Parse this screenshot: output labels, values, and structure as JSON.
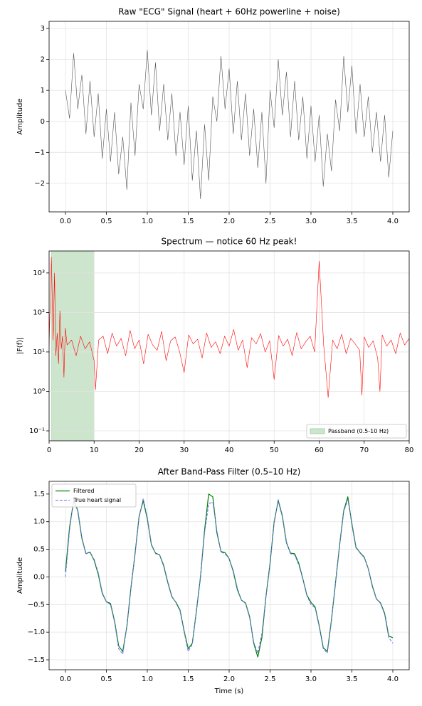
{
  "chart_data": [
    {
      "type": "line",
      "title": "Raw \"ECG\" Signal (heart + 60Hz powerline + noise)",
      "ylabel": "Amplitude",
      "xlim": [
        -0.2,
        4.2
      ],
      "ylim": [
        -2.92,
        3.23
      ],
      "grid": true,
      "xticks": [
        {
          "value": 0,
          "label": "0.0"
        },
        0.5,
        {
          "value": 1,
          "label": "1.0"
        },
        1.5,
        {
          "value": 2,
          "label": "2.0"
        },
        2.5,
        {
          "value": 3,
          "label": "3.0"
        },
        3.5,
        {
          "value": 4,
          "label": "4.0"
        }
      ],
      "yticks": [
        {
          "value": -2,
          "label": "−2"
        },
        {
          "value": -1,
          "label": "−1"
        },
        0,
        1,
        2,
        3
      ],
      "x": [
        0,
        0.05,
        0.1,
        0.15,
        0.2,
        0.25,
        0.3,
        0.35,
        0.4,
        0.45,
        0.5,
        0.55,
        0.6,
        0.65,
        0.7,
        0.75,
        0.8,
        0.85,
        0.9,
        0.95,
        1,
        1.05,
        1.1,
        1.15,
        1.2,
        1.25,
        1.3,
        1.35,
        1.4,
        1.45,
        1.5,
        1.55,
        1.6,
        1.65,
        1.7,
        1.75,
        1.8,
        1.85,
        1.9,
        1.95,
        2,
        2.05,
        2.1,
        2.15,
        2.2,
        2.25,
        2.3,
        2.35,
        2.4,
        2.45,
        2.5,
        2.55,
        2.6,
        2.65,
        2.7,
        2.75,
        2.8,
        2.85,
        2.9,
        2.95,
        3,
        3.05,
        3.1,
        3.15,
        3.2,
        3.25,
        3.3,
        3.35,
        3.4,
        3.45,
        3.5,
        3.55,
        3.6,
        3.65,
        3.7,
        3.75,
        3.8,
        3.85,
        3.9,
        3.95,
        4
      ],
      "series": [
        {
          "color": "#555555",
          "width": 0.6,
          "values": [
            1.0,
            0.1,
            2.2,
            0.4,
            1.5,
            -0.4,
            1.3,
            -0.5,
            0.9,
            -1.2,
            0.4,
            -1.3,
            0.3,
            -1.7,
            -0.5,
            -2.2,
            0.6,
            -1.1,
            1.2,
            0.4,
            2.3,
            0.2,
            1.9,
            -0.3,
            1.2,
            -0.6,
            0.9,
            -1.1,
            0.3,
            -1.4,
            0.5,
            -1.9,
            -0.3,
            -2.5,
            -0.1,
            -1.9,
            0.8,
            0.0,
            2.1,
            0.4,
            1.7,
            -0.4,
            1.3,
            -0.6,
            0.9,
            -1.1,
            0.4,
            -1.5,
            0.3,
            -2.0,
            1.0,
            -0.2,
            2.0,
            0.2,
            1.6,
            -0.5,
            1.3,
            -0.6,
            0.8,
            -1.2,
            0.5,
            -1.3,
            0.2,
            -2.1,
            -0.4,
            -1.6,
            0.7,
            -0.3,
            2.1,
            0.3,
            1.8,
            -0.4,
            1.2,
            -0.5,
            0.8,
            -1.0,
            0.3,
            -1.3,
            0.2,
            -1.8,
            -0.3
          ]
        }
      ]
    },
    {
      "type": "line",
      "title": "Spectrum — notice 60 Hz peak!",
      "ylabel": "|F(f)|",
      "log_y": true,
      "xlim": [
        0,
        80
      ],
      "ylim": [
        0.056,
        3600
      ],
      "grid": true,
      "legend": "lower right",
      "xticks": [
        0,
        10,
        20,
        30,
        40,
        50,
        60,
        70,
        80
      ],
      "yticks": [
        {
          "value": 0.1,
          "label": "10⁻¹"
        },
        {
          "value": 1,
          "label": "10⁰"
        },
        {
          "value": 10,
          "label": "10¹"
        },
        {
          "value": 100,
          "label": "10²"
        },
        {
          "value": 1000,
          "label": "10³"
        }
      ],
      "passband": {
        "name": "Passband (0.5-10 Hz)",
        "range": [
          0.5,
          10
        ],
        "color": "#cce5cc",
        "edge": "#a8d3a8"
      },
      "x": [
        0,
        0.5,
        0.9,
        1.2,
        1.5,
        1.8,
        2.1,
        2.4,
        2.7,
        3.0,
        3.3,
        3.6,
        4,
        5,
        6,
        7,
        8,
        9,
        10,
        10.3,
        11,
        12,
        13,
        14,
        15,
        16,
        17,
        18,
        19,
        20,
        21,
        22,
        23,
        24,
        25,
        26,
        27,
        28,
        29,
        30,
        31,
        32,
        33,
        34,
        35,
        36,
        37,
        38,
        39,
        40,
        41,
        42,
        43,
        44,
        45,
        46,
        47,
        48,
        49,
        50,
        51,
        52,
        53,
        54,
        55,
        56,
        57,
        58,
        59,
        60,
        61,
        62,
        63,
        64,
        65,
        66,
        67,
        68,
        69,
        69.5,
        70,
        71,
        72,
        73,
        73.5,
        74,
        75,
        76,
        77,
        78,
        79,
        80
      ],
      "series": [
        {
          "color": "red",
          "width": 0.6,
          "values": [
            15,
            2500,
            20,
            1000,
            8,
            30,
            5,
            110,
            12,
            25,
            2.3,
            40,
            15,
            20,
            8,
            25,
            12,
            18,
            6,
            1.1,
            20,
            25,
            9,
            30,
            14,
            22,
            8,
            35,
            12,
            20,
            5,
            28,
            15,
            11,
            33,
            6,
            19,
            24,
            10,
            3,
            27,
            16,
            21,
            7,
            30,
            13,
            18,
            9,
            25,
            14,
            37,
            11,
            20,
            4,
            23,
            16,
            29,
            10,
            19,
            2,
            26,
            14,
            21,
            8,
            31,
            12,
            18,
            25,
            10,
            2000,
            15,
            0.7,
            20,
            12,
            28,
            9,
            22,
            16,
            11,
            0.8,
            24,
            13,
            19,
            7,
            1.0,
            27,
            14,
            20,
            9,
            30,
            15,
            22
          ]
        }
      ]
    },
    {
      "type": "line",
      "title": "After Band-Pass Filter (0.5–10 Hz)",
      "xlabel": "Time (s)",
      "ylabel": "Amplitude",
      "xlim": [
        -0.2,
        4.2
      ],
      "ylim": [
        -1.68,
        1.73
      ],
      "grid": true,
      "legend": "upper left",
      "xticks": [
        {
          "value": 0,
          "label": "0.0"
        },
        0.5,
        {
          "value": 1,
          "label": "1.0"
        },
        1.5,
        {
          "value": 2,
          "label": "2.0"
        },
        2.5,
        {
          "value": 3,
          "label": "3.0"
        },
        3.5,
        {
          "value": 4,
          "label": "4.0"
        }
      ],
      "yticks": [
        {
          "value": -1.5,
          "label": "−1.5"
        },
        {
          "value": -1,
          "label": "−1.0"
        },
        {
          "value": -0.5,
          "label": "−0.5"
        },
        {
          "value": 0,
          "label": "0.0"
        },
        0.5,
        {
          "value": 1,
          "label": "1.0"
        },
        1.5
      ],
      "x": [
        0,
        0.05,
        0.1,
        0.15,
        0.2,
        0.25,
        0.3,
        0.35,
        0.4,
        0.45,
        0.5,
        0.55,
        0.6,
        0.65,
        0.7,
        0.75,
        0.8,
        0.85,
        0.9,
        0.95,
        1,
        1.05,
        1.1,
        1.15,
        1.2,
        1.25,
        1.3,
        1.35,
        1.4,
        1.45,
        1.5,
        1.55,
        1.6,
        1.65,
        1.7,
        1.75,
        1.8,
        1.85,
        1.9,
        1.95,
        2,
        2.05,
        2.1,
        2.15,
        2.2,
        2.25,
        2.3,
        2.35,
        2.4,
        2.45,
        2.5,
        2.55,
        2.6,
        2.65,
        2.7,
        2.75,
        2.8,
        2.85,
        2.9,
        2.95,
        3,
        3.05,
        3.1,
        3.15,
        3.2,
        3.25,
        3.3,
        3.35,
        3.4,
        3.45,
        3.5,
        3.55,
        3.6,
        3.65,
        3.7,
        3.75,
        3.8,
        3.85,
        3.9,
        3.95,
        4
      ],
      "series": [
        {
          "name": "Filtered",
          "color": "green",
          "width": 1.2,
          "dashed": false,
          "values": [
            0.1,
            0.9,
            1.38,
            1.2,
            0.7,
            0.42,
            0.45,
            0.3,
            0.05,
            -0.3,
            -0.45,
            -0.48,
            -0.8,
            -1.25,
            -1.35,
            -0.9,
            -0.2,
            0.42,
            1.1,
            1.38,
            1.05,
            0.58,
            0.43,
            0.4,
            0.2,
            -0.1,
            -0.36,
            -0.46,
            -0.6,
            -0.98,
            -1.3,
            -1.2,
            -0.62,
            0.0,
            0.85,
            1.5,
            1.45,
            0.8,
            0.46,
            0.44,
            0.33,
            0.1,
            -0.23,
            -0.42,
            -0.47,
            -0.72,
            -1.2,
            -1.45,
            -1.1,
            -0.35,
            0.25,
            1.0,
            1.38,
            1.1,
            0.62,
            0.43,
            0.42,
            0.25,
            -0.03,
            -0.33,
            -0.46,
            -0.54,
            -0.88,
            -1.28,
            -1.35,
            -0.78,
            -0.1,
            0.58,
            1.2,
            1.45,
            0.95,
            0.53,
            0.44,
            0.36,
            0.15,
            -0.17,
            -0.4,
            -0.47,
            -0.66,
            -1.07,
            -1.1
          ]
        },
        {
          "name": "True heart signal",
          "color": "#6b6bff",
          "width": 1,
          "dashed": true,
          "values": [
            0.0,
            0.85,
            1.4,
            1.22,
            0.72,
            0.42,
            0.44,
            0.32,
            0.08,
            -0.28,
            -0.45,
            -0.5,
            -0.82,
            -1.3,
            -1.4,
            -0.88,
            -0.18,
            0.4,
            1.08,
            1.42,
            1.08,
            0.6,
            0.42,
            0.4,
            0.22,
            -0.08,
            -0.35,
            -0.47,
            -0.62,
            -1.0,
            -1.35,
            -1.22,
            -0.6,
            0.02,
            0.8,
            1.32,
            1.36,
            0.84,
            0.45,
            0.42,
            0.33,
            0.12,
            -0.2,
            -0.42,
            -0.48,
            -0.74,
            -1.18,
            -1.38,
            -1.02,
            -0.36,
            0.22,
            0.98,
            1.4,
            1.12,
            0.64,
            0.42,
            0.4,
            0.22,
            -0.04,
            -0.34,
            -0.5,
            -0.56,
            -0.9,
            -1.3,
            -1.38,
            -0.8,
            -0.12,
            0.56,
            1.18,
            1.4,
            0.98,
            0.55,
            0.43,
            0.35,
            0.15,
            -0.15,
            -0.4,
            -0.48,
            -0.68,
            -1.1,
            -1.2
          ]
        }
      ]
    }
  ]
}
